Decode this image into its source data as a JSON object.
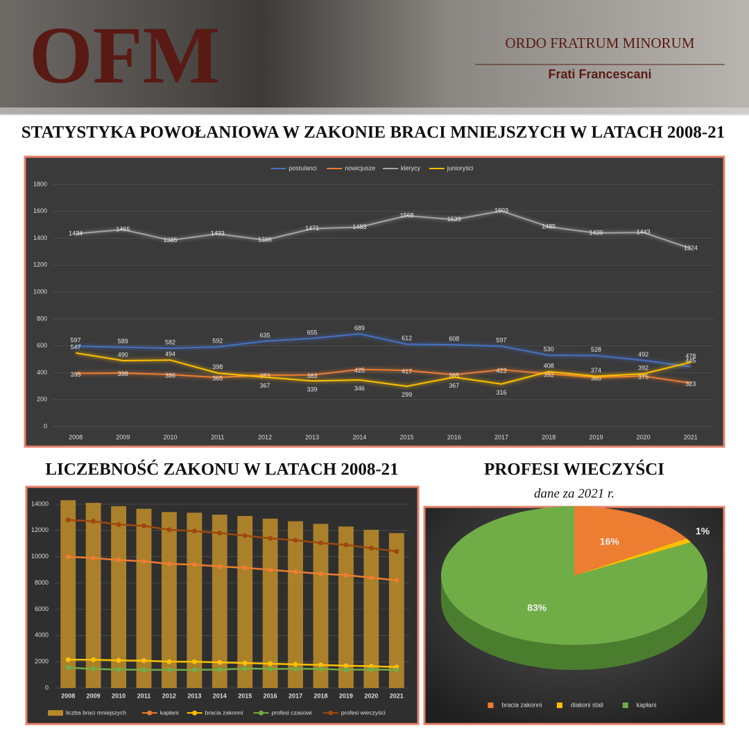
{
  "header": {
    "logo": "OFM",
    "name": "ORDO FRATRUM MINORUM",
    "subtitle": "Frati Francescani"
  },
  "chart_data": [
    {
      "type": "line",
      "title": "STATYSTYKA POWOŁANIOWA W ZAKONIE BRACI MNIEJSZYCH W LATACH 2008-21",
      "categories": [
        "2008",
        "2009",
        "2010",
        "2011",
        "2012",
        "2013",
        "2014",
        "2015",
        "2016",
        "2017",
        "2018",
        "2019",
        "2020",
        "2021"
      ],
      "series": [
        {
          "name": "postulanci",
          "color": "#4472c4",
          "values": [
            597,
            589,
            582,
            592,
            635,
            655,
            689,
            612,
            608,
            597,
            530,
            528,
            492,
            445
          ]
        },
        {
          "name": "nowicjusze",
          "color": "#ed7d31",
          "values": [
            395,
            398,
            386,
            365,
            383,
            383,
            425,
            417,
            385,
            423,
            392,
            365,
            375,
            323
          ]
        },
        {
          "name": "klerycy",
          "color": "#a5a5a5",
          "values": [
            1434,
            1465,
            1385,
            1433,
            1386,
            1471,
            1483,
            1568,
            1539,
            1603,
            1485,
            1439,
            1443,
            1324
          ]
        },
        {
          "name": "junioryści",
          "color": "#ffc000",
          "values": [
            547,
            490,
            494,
            398,
            367,
            339,
            346,
            299,
            367,
            316,
            408,
            374,
            392,
            478
          ]
        }
      ],
      "ylim": [
        0,
        1800
      ],
      "yticks": [
        0,
        200,
        400,
        600,
        800,
        1000,
        1200,
        1400,
        1600,
        1800
      ],
      "legend": "top",
      "data_labels": true
    },
    {
      "type": "combo",
      "title": "LICZEBNOŚĆ ZAKONU W LATACH 2008-21",
      "categories": [
        "2008",
        "2009",
        "2010",
        "2011",
        "2012",
        "2013",
        "2014",
        "2015",
        "2016",
        "2017",
        "2018",
        "2019",
        "2020",
        "2021"
      ],
      "series": [
        {
          "name": "liczba braci mniejszych",
          "type": "bar",
          "color": "#b8892b",
          "values": [
            14300,
            14100,
            13850,
            13650,
            13400,
            13350,
            13200,
            13100,
            12900,
            12700,
            12500,
            12300,
            12050,
            11800
          ]
        },
        {
          "name": "kapłani",
          "type": "line",
          "color": "#ed7d31",
          "values": [
            10000,
            9900,
            9750,
            9650,
            9450,
            9400,
            9250,
            9150,
            9000,
            8850,
            8700,
            8600,
            8400,
            8200
          ]
        },
        {
          "name": "bracia zakonni",
          "type": "line",
          "color": "#ffc000",
          "values": [
            2150,
            2150,
            2100,
            2080,
            2000,
            2000,
            1950,
            1900,
            1850,
            1800,
            1750,
            1700,
            1650,
            1600
          ]
        },
        {
          "name": "profesi czasowi",
          "type": "line",
          "color": "#70ad47",
          "values": [
            1550,
            1450,
            1400,
            1380,
            1380,
            1380,
            1400,
            1480,
            1450,
            1450,
            1450,
            1380,
            1400,
            1380
          ]
        },
        {
          "name": "profesi wieczyści",
          "type": "line",
          "color": "#9e480e",
          "values": [
            12800,
            12700,
            12450,
            12350,
            12050,
            11950,
            11800,
            11600,
            11400,
            11250,
            11050,
            10900,
            10650,
            10400
          ]
        }
      ],
      "ylim": [
        0,
        14500
      ],
      "yticks": [
        0,
        2000,
        4000,
        6000,
        8000,
        10000,
        12000,
        14000
      ],
      "legend": "bottom"
    },
    {
      "type": "pie",
      "title": "PROFESI WIECZYŚCI",
      "subtitle": "dane za 2021 r.",
      "categories": [
        "bracia zakonni",
        "diakoni stali",
        "kapłani"
      ],
      "values": [
        16,
        1,
        83
      ],
      "value_labels": [
        "16%",
        "1%",
        "83%"
      ],
      "colors": [
        "#ed7d31",
        "#ffc000",
        "#70ad47"
      ],
      "legend": "bottom"
    }
  ]
}
